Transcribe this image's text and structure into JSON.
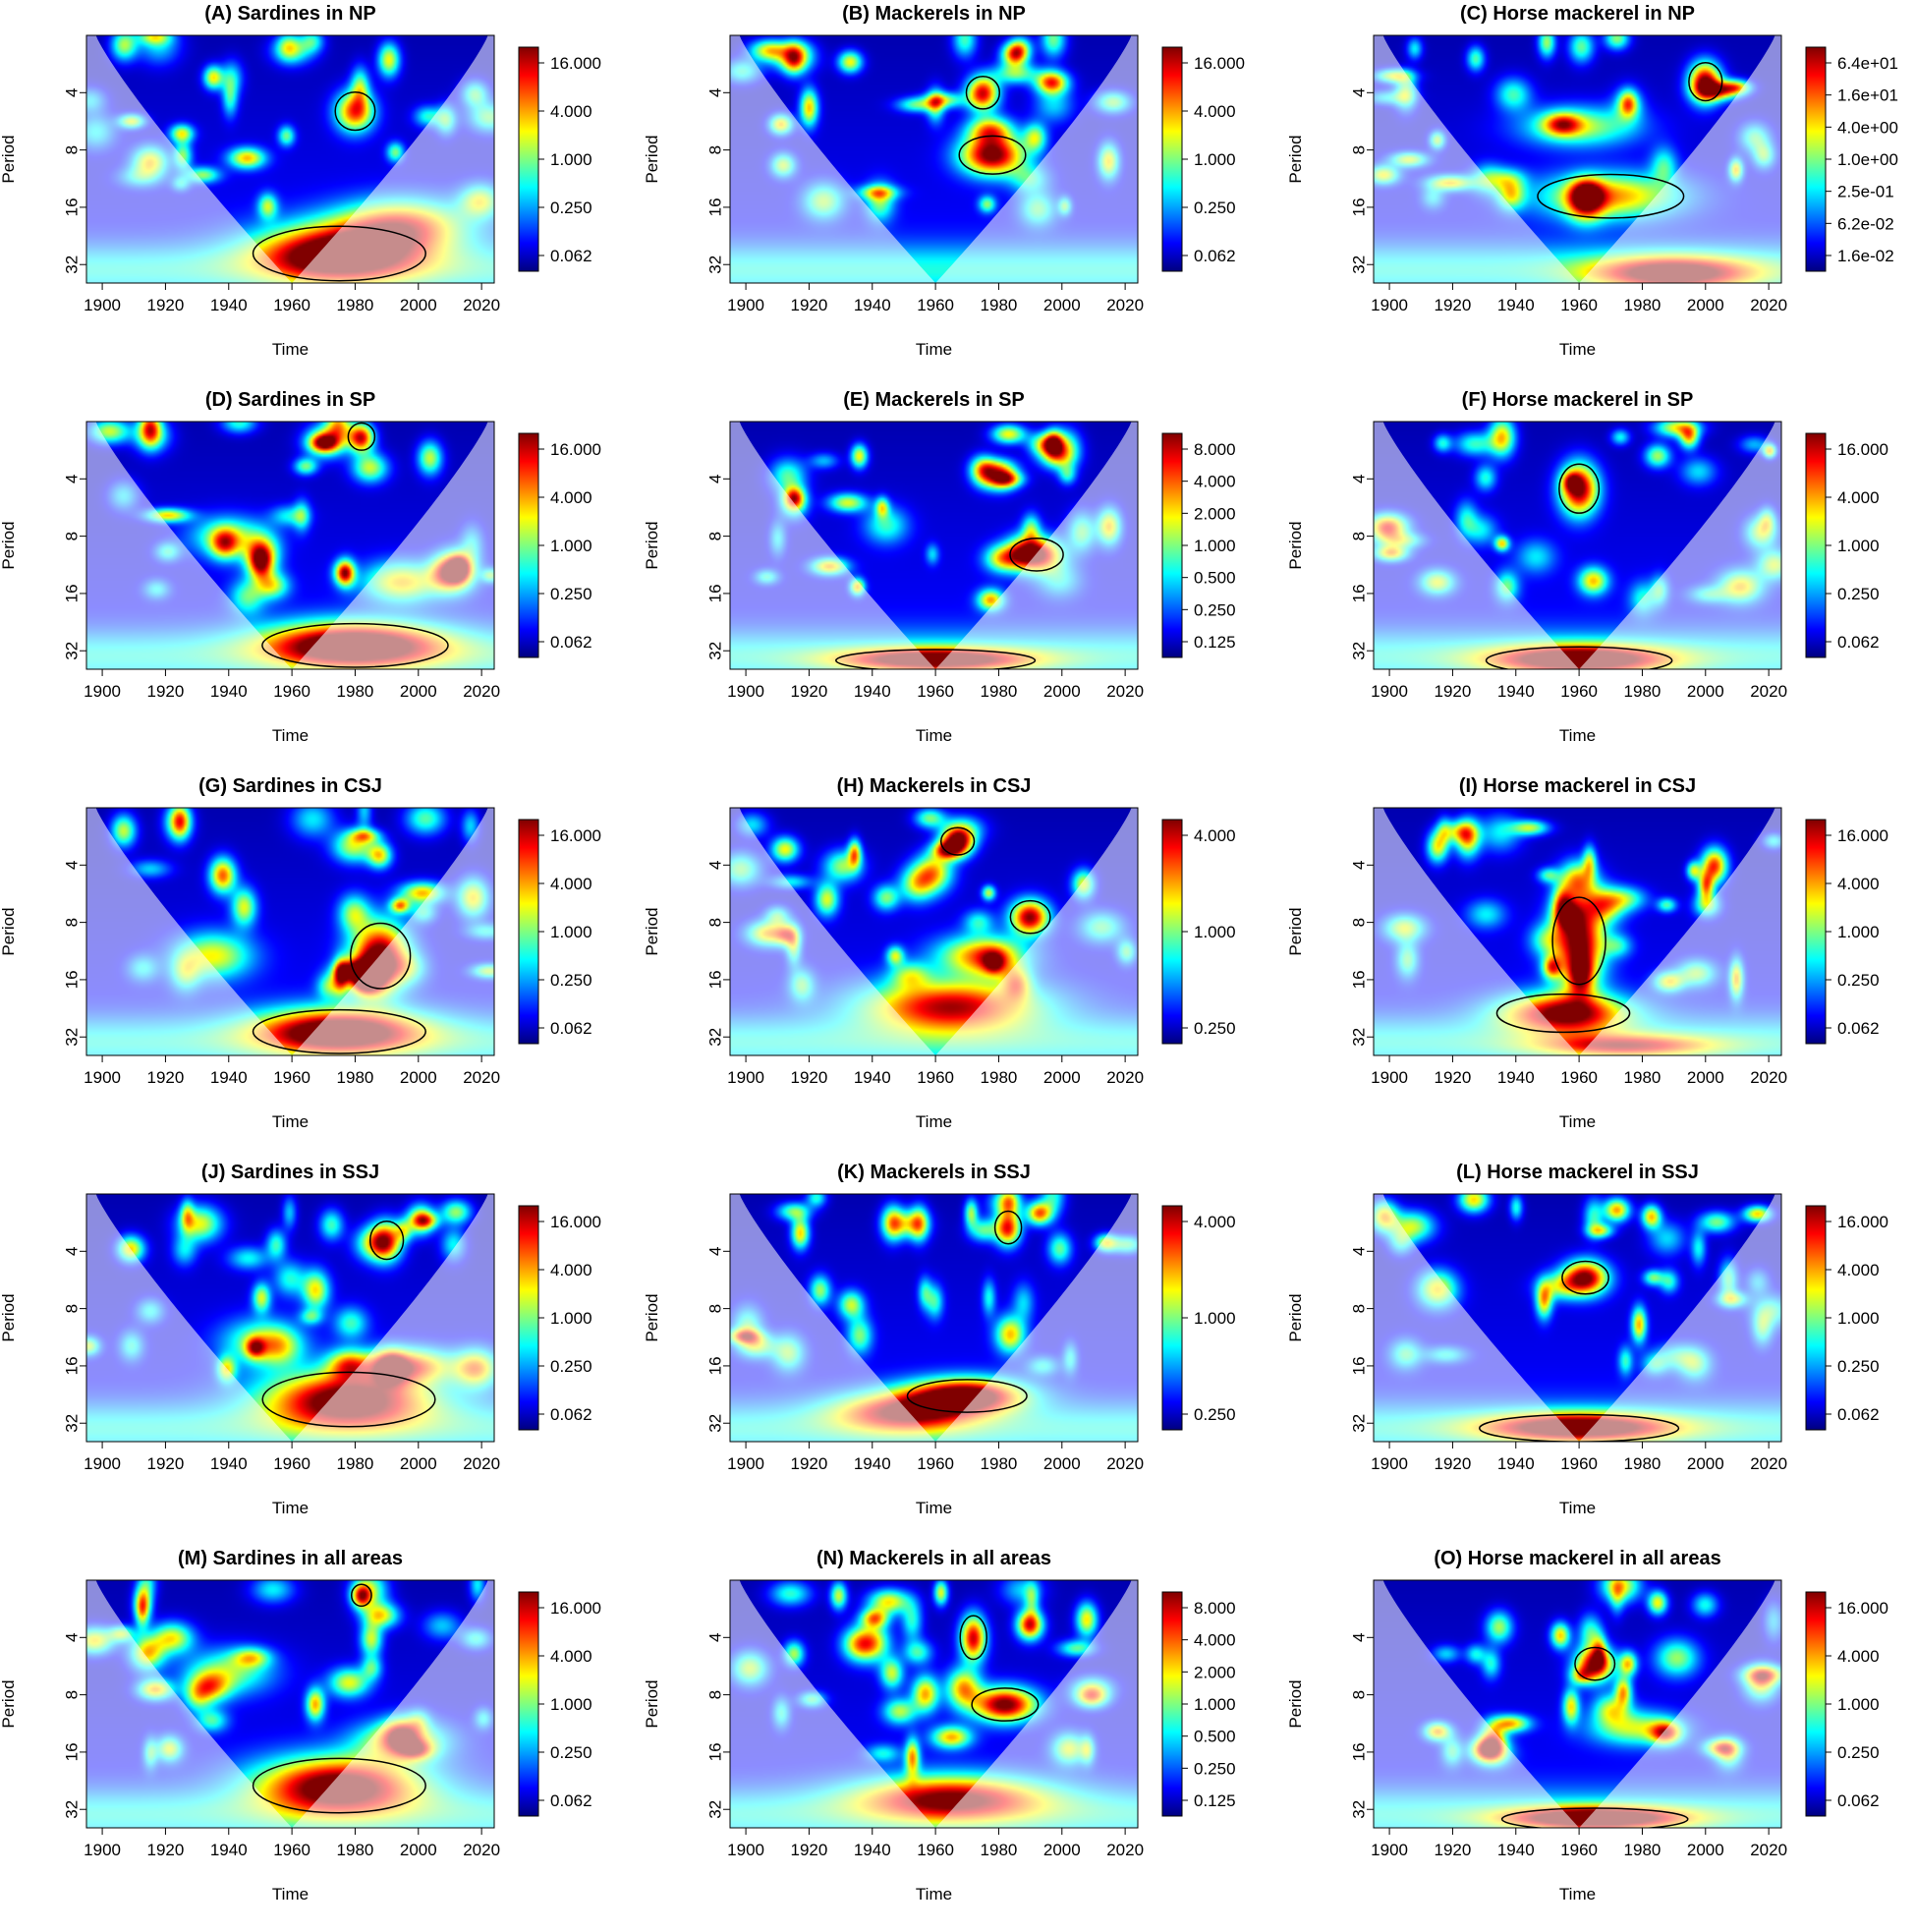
{
  "figure": {
    "x_ticks": [
      1900,
      1920,
      1940,
      1960,
      1980,
      2000,
      2020
    ],
    "y_ticks": [
      4,
      8,
      16,
      32
    ],
    "xlabel": "Time",
    "ylabel": "Period",
    "xlim": [
      1895,
      2024
    ],
    "period_range": [
      2,
      40
    ],
    "colormap": [
      "#00007f",
      "#0000ff",
      "#007fff",
      "#00ffff",
      "#7fff7f",
      "#ffff00",
      "#ff7f00",
      "#ff0000",
      "#7f0000"
    ],
    "cone_shading": "#ffffff"
  },
  "chart_data": [
    {
      "id": "A",
      "type": "heatmap",
      "title": "(A) Sardines in NP",
      "xlabel": "Time",
      "ylabel": "Period",
      "legend_ticks": [
        "16.000",
        "4.000",
        "1.000",
        "0.250",
        "0.062"
      ],
      "hotspots": [
        {
          "x": 1975,
          "p": 28,
          "w": 26,
          "h": 0.5,
          "a": 1.0
        },
        {
          "x": 1980,
          "p": 5,
          "w": 6,
          "h": 0.35,
          "a": 0.8
        },
        {
          "x": 1935,
          "p": 3.3,
          "w": 3,
          "h": 0.2,
          "a": 0.6
        },
        {
          "x": 1995,
          "p": 20,
          "w": 20,
          "h": 0.45,
          "a": 0.7
        }
      ]
    },
    {
      "id": "B",
      "type": "heatmap",
      "title": "(B) Mackerels in NP",
      "xlabel": "Time",
      "ylabel": "Period",
      "legend_ticks": [
        "16.000",
        "4.000",
        "1.000",
        "0.250",
        "0.062"
      ],
      "hotspots": [
        {
          "x": 1978,
          "p": 8.5,
          "w": 10,
          "h": 0.35,
          "a": 1.0
        },
        {
          "x": 1975,
          "p": 4,
          "w": 5,
          "h": 0.3,
          "a": 0.9
        },
        {
          "x": 1997,
          "p": 3.5,
          "w": 5,
          "h": 0.2,
          "a": 0.8
        },
        {
          "x": 1985,
          "p": 2.5,
          "w": 4,
          "h": 0.2,
          "a": 0.7
        }
      ]
    },
    {
      "id": "C",
      "type": "heatmap",
      "title": "(C) Horse mackerel in NP",
      "xlabel": "Time",
      "ylabel": "Period",
      "legend_ticks": [
        "6.4e+01",
        "1.6e+01",
        "4.0e+00",
        "1.0e+00",
        "2.5e-01",
        "6.2e-02",
        "1.6e-02"
      ],
      "hotspots": [
        {
          "x": 2000,
          "p": 3.5,
          "w": 5,
          "h": 0.35,
          "a": 1.0
        },
        {
          "x": 1970,
          "p": 14,
          "w": 22,
          "h": 0.4,
          "a": 0.65
        },
        {
          "x": 1990,
          "p": 36,
          "w": 25,
          "h": 0.3,
          "a": 0.85
        },
        {
          "x": 1960,
          "p": 6,
          "w": 18,
          "h": 0.35,
          "a": 0.5
        }
      ]
    },
    {
      "id": "D",
      "type": "heatmap",
      "title": "(D) Sardines in SP",
      "xlabel": "Time",
      "ylabel": "Period",
      "legend_ticks": [
        "16.000",
        "4.000",
        "1.000",
        "0.250",
        "0.062"
      ],
      "hotspots": [
        {
          "x": 1980,
          "p": 30,
          "w": 28,
          "h": 0.4,
          "a": 1.0
        },
        {
          "x": 1982,
          "p": 2.4,
          "w": 4,
          "h": 0.25,
          "a": 0.9
        },
        {
          "x": 1995,
          "p": 14,
          "w": 12,
          "h": 0.35,
          "a": 0.6
        },
        {
          "x": 1940,
          "p": 8,
          "w": 12,
          "h": 0.35,
          "a": 0.45
        }
      ]
    },
    {
      "id": "E",
      "type": "heatmap",
      "title": "(E) Mackerels in SP",
      "xlabel": "Time",
      "ylabel": "Period",
      "legend_ticks": [
        "8.000",
        "4.000",
        "2.000",
        "1.000",
        "0.500",
        "0.250",
        "0.125"
      ],
      "hotspots": [
        {
          "x": 1992,
          "p": 10,
          "w": 8,
          "h": 0.3,
          "a": 1.0
        },
        {
          "x": 1960,
          "p": 36,
          "w": 30,
          "h": 0.2,
          "a": 0.9
        },
        {
          "x": 1975,
          "p": 3.6,
          "w": 4,
          "h": 0.25,
          "a": 0.6
        },
        {
          "x": 1995,
          "p": 2.6,
          "w": 5,
          "h": 0.2,
          "a": 0.6
        }
      ]
    },
    {
      "id": "F",
      "type": "heatmap",
      "title": "(F) Horse mackerel in SP",
      "xlabel": "Time",
      "ylabel": "Period",
      "legend_ticks": [
        "16.000",
        "4.000",
        "1.000",
        "0.250",
        "0.062"
      ],
      "hotspots": [
        {
          "x": 1960,
          "p": 4.5,
          "w": 6,
          "h": 0.45,
          "a": 1.0
        },
        {
          "x": 1960,
          "p": 36,
          "w": 28,
          "h": 0.25,
          "a": 0.95
        },
        {
          "x": 1995,
          "p": 2.4,
          "w": 3,
          "h": 0.2,
          "a": 0.6
        },
        {
          "x": 1985,
          "p": 3,
          "w": 4,
          "h": 0.2,
          "a": 0.5
        }
      ]
    },
    {
      "id": "G",
      "type": "heatmap",
      "title": "(G) Sardines in CSJ",
      "xlabel": "Time",
      "ylabel": "Period",
      "legend_ticks": [
        "16.000",
        "4.000",
        "1.000",
        "0.250",
        "0.062"
      ],
      "hotspots": [
        {
          "x": 1988,
          "p": 12,
          "w": 9,
          "h": 0.6,
          "a": 1.0
        },
        {
          "x": 1975,
          "p": 30,
          "w": 26,
          "h": 0.4,
          "a": 0.95
        },
        {
          "x": 1938,
          "p": 4.5,
          "w": 4,
          "h": 0.3,
          "a": 0.75
        },
        {
          "x": 1935,
          "p": 12,
          "w": 12,
          "h": 0.4,
          "a": 0.55
        }
      ]
    },
    {
      "id": "H",
      "type": "heatmap",
      "title": "(H) Mackerels in CSJ",
      "xlabel": "Time",
      "ylabel": "Period",
      "legend_ticks": [
        "4.000",
        "1.000",
        "0.250"
      ],
      "hotspots": [
        {
          "x": 1967,
          "p": 3,
          "w": 5,
          "h": 0.25,
          "a": 1.0
        },
        {
          "x": 1990,
          "p": 7.5,
          "w": 6,
          "h": 0.3,
          "a": 0.95
        },
        {
          "x": 1965,
          "p": 22,
          "w": 28,
          "h": 0.45,
          "a": 0.85
        },
        {
          "x": 1975,
          "p": 12,
          "w": 14,
          "h": 0.35,
          "a": 0.7
        }
      ]
    },
    {
      "id": "I",
      "type": "heatmap",
      "title": "(I) Horse mackerel in CSJ",
      "xlabel": "Time",
      "ylabel": "Period",
      "legend_ticks": [
        "16.000",
        "4.000",
        "1.000",
        "0.250",
        "0.062"
      ],
      "hotspots": [
        {
          "x": 1960,
          "p": 10,
          "w": 8,
          "h": 0.8,
          "a": 1.0
        },
        {
          "x": 1955,
          "p": 24,
          "w": 20,
          "h": 0.35,
          "a": 0.9
        },
        {
          "x": 2003,
          "p": 4,
          "w": 4,
          "h": 0.3,
          "a": 0.8
        },
        {
          "x": 1975,
          "p": 36,
          "w": 28,
          "h": 0.2,
          "a": 0.6
        }
      ]
    },
    {
      "id": "J",
      "type": "heatmap",
      "title": "(J) Sardines in SSJ",
      "xlabel": "Time",
      "ylabel": "Period",
      "legend_ticks": [
        "16.000",
        "4.000",
        "1.000",
        "0.250",
        "0.062"
      ],
      "hotspots": [
        {
          "x": 1978,
          "p": 24,
          "w": 26,
          "h": 0.5,
          "a": 1.0
        },
        {
          "x": 1990,
          "p": 3.5,
          "w": 5,
          "h": 0.35,
          "a": 0.75
        },
        {
          "x": 1950,
          "p": 12,
          "w": 12,
          "h": 0.4,
          "a": 0.45
        },
        {
          "x": 1997,
          "p": 16,
          "w": 14,
          "h": 0.3,
          "a": 0.7
        }
      ]
    },
    {
      "id": "K",
      "type": "heatmap",
      "title": "(K) Mackerels in SSJ",
      "xlabel": "Time",
      "ylabel": "Period",
      "legend_ticks": [
        "4.000",
        "1.000",
        "0.250"
      ],
      "hotspots": [
        {
          "x": 1970,
          "p": 23,
          "w": 18,
          "h": 0.3,
          "a": 1.0
        },
        {
          "x": 1983,
          "p": 3,
          "w": 4,
          "h": 0.3,
          "a": 0.85
        },
        {
          "x": 1993,
          "p": 2.5,
          "w": 4,
          "h": 0.2,
          "a": 0.75
        },
        {
          "x": 1950,
          "p": 28,
          "w": 22,
          "h": 0.35,
          "a": 0.75
        }
      ]
    },
    {
      "id": "L",
      "type": "heatmap",
      "title": "(L) Horse mackerel in SSJ",
      "xlabel": "Time",
      "ylabel": "Period",
      "legend_ticks": [
        "16.000",
        "4.000",
        "1.000",
        "0.250",
        "0.062"
      ],
      "hotspots": [
        {
          "x": 1962,
          "p": 5.5,
          "w": 7,
          "h": 0.3,
          "a": 1.0
        },
        {
          "x": 1960,
          "p": 34,
          "w": 30,
          "h": 0.25,
          "a": 0.9
        },
        {
          "x": 1983,
          "p": 2.6,
          "w": 3,
          "h": 0.2,
          "a": 0.65
        },
        {
          "x": 1972,
          "p": 2.4,
          "w": 4,
          "h": 0.2,
          "a": 0.7
        }
      ]
    },
    {
      "id": "M",
      "type": "heatmap",
      "title": "(M) Sardines in all areas",
      "xlabel": "Time",
      "ylabel": "Period",
      "legend_ticks": [
        "16.000",
        "4.000",
        "1.000",
        "0.250",
        "0.062"
      ],
      "hotspots": [
        {
          "x": 1975,
          "p": 24,
          "w": 26,
          "h": 0.5,
          "a": 1.0
        },
        {
          "x": 1982,
          "p": 2.4,
          "w": 3,
          "h": 0.2,
          "a": 0.65
        },
        {
          "x": 1995,
          "p": 14,
          "w": 14,
          "h": 0.35,
          "a": 0.6
        },
        {
          "x": 1940,
          "p": 6,
          "w": 14,
          "h": 0.4,
          "a": 0.45
        }
      ]
    },
    {
      "id": "N",
      "type": "heatmap",
      "title": "(N) Mackerels in all areas",
      "xlabel": "Time",
      "ylabel": "Period",
      "legend_ticks": [
        "8.000",
        "4.000",
        "2.000",
        "1.000",
        "0.500",
        "0.250",
        "0.125"
      ],
      "hotspots": [
        {
          "x": 1982,
          "p": 9,
          "w": 10,
          "h": 0.3,
          "a": 1.0
        },
        {
          "x": 1972,
          "p": 4,
          "w": 4,
          "h": 0.4,
          "a": 0.9
        },
        {
          "x": 1990,
          "p": 3.4,
          "w": 4,
          "h": 0.25,
          "a": 0.9
        },
        {
          "x": 1965,
          "p": 28,
          "w": 30,
          "h": 0.4,
          "a": 0.8
        }
      ]
    },
    {
      "id": "O",
      "type": "heatmap",
      "title": "(O) Horse mackerel in all areas",
      "xlabel": "Time",
      "ylabel": "Period",
      "legend_ticks": [
        "16.000",
        "4.000",
        "1.000",
        "0.250",
        "0.062"
      ],
      "hotspots": [
        {
          "x": 1965,
          "p": 36,
          "w": 28,
          "h": 0.2,
          "a": 1.0
        },
        {
          "x": 1965,
          "p": 5.5,
          "w": 6,
          "h": 0.3,
          "a": 0.95
        },
        {
          "x": 1985,
          "p": 2.6,
          "w": 3,
          "h": 0.2,
          "a": 0.6
        },
        {
          "x": 1978,
          "p": 12,
          "w": 14,
          "h": 0.3,
          "a": 0.5
        }
      ]
    }
  ]
}
